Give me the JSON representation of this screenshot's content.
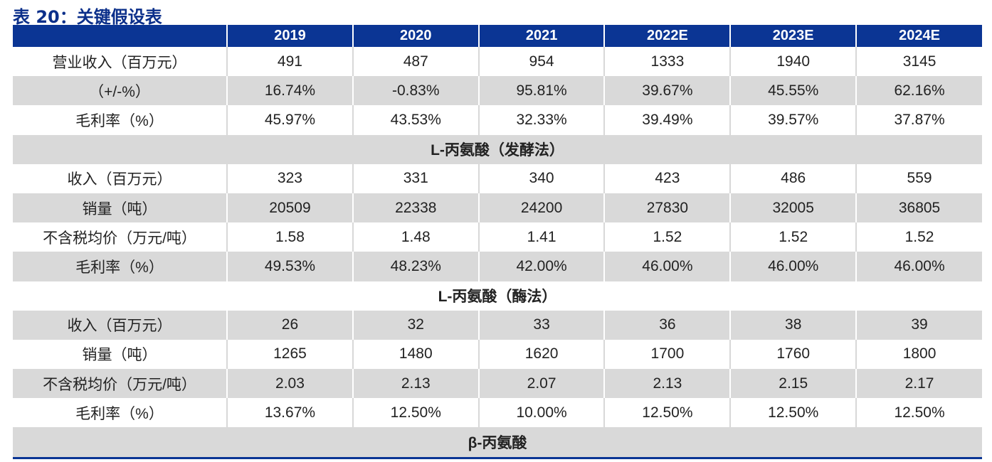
{
  "title": "表 20：关键假设表",
  "columns": [
    "2019",
    "2020",
    "2021",
    "2022E",
    "2023E",
    "2024E"
  ],
  "rows": [
    {
      "label": "营业收入（百万元）",
      "values": [
        "491",
        "487",
        "954",
        "1333",
        "1940",
        "3145"
      ]
    },
    {
      "label": "（+/-%）",
      "values": [
        "16.74%",
        "-0.83%",
        "95.81%",
        "39.67%",
        "45.55%",
        "62.16%"
      ]
    },
    {
      "label": "毛利率（%）",
      "values": [
        "45.97%",
        "43.53%",
        "32.33%",
        "39.49%",
        "39.57%",
        "37.87%"
      ]
    },
    {
      "section": "L-丙氨酸（发酵法）"
    },
    {
      "label": "收入（百万元）",
      "values": [
        "323",
        "331",
        "340",
        "423",
        "486",
        "559"
      ]
    },
    {
      "label": "销量（吨）",
      "values": [
        "20509",
        "22338",
        "24200",
        "27830",
        "32005",
        "36805"
      ]
    },
    {
      "label": "不含税均价（万元/吨）",
      "values": [
        "1.58",
        "1.48",
        "1.41",
        "1.52",
        "1.52",
        "1.52"
      ]
    },
    {
      "label": "毛利率（%）",
      "values": [
        "49.53%",
        "48.23%",
        "42.00%",
        "46.00%",
        "46.00%",
        "46.00%"
      ]
    },
    {
      "section": "L-丙氨酸（酶法）"
    },
    {
      "label": "收入（百万元）",
      "values": [
        "26",
        "32",
        "33",
        "36",
        "38",
        "39"
      ]
    },
    {
      "label": "销量（吨）",
      "values": [
        "1265",
        "1480",
        "1620",
        "1700",
        "1760",
        "1800"
      ]
    },
    {
      "label": "不含税均价（万元/吨）",
      "values": [
        "2.03",
        "2.13",
        "2.07",
        "2.13",
        "2.15",
        "2.17"
      ]
    },
    {
      "label": "毛利率（%）",
      "values": [
        "13.67%",
        "12.50%",
        "10.00%",
        "12.50%",
        "12.50%",
        "12.50%"
      ]
    },
    {
      "section": "β-丙氨酸"
    }
  ]
}
